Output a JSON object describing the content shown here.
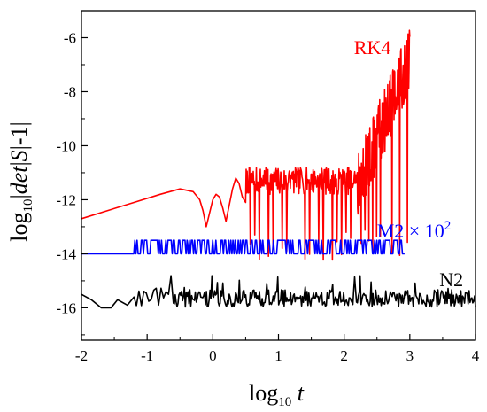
{
  "chart_data": {
    "type": "line",
    "xlabel": {
      "base": "log",
      "sub": "10",
      "var": "t"
    },
    "ylabel": {
      "base": "log",
      "sub": "10",
      "mid": "|",
      "italic": "det",
      "bar1": "|",
      "italic2": "S",
      "tail": "|-1|"
    },
    "xlim": [
      -2,
      4
    ],
    "ylim": [
      -17.2,
      -5
    ],
    "x_ticks": [
      "-2",
      "-1",
      "0",
      "1",
      "2",
      "3",
      "4"
    ],
    "y_ticks": [
      "-6",
      "-8",
      "-10",
      "-12",
      "-14",
      "-16"
    ],
    "grid": false,
    "series": [
      {
        "name": "RK4",
        "color": "#ff0000",
        "label": "RK4",
        "label_anchor": {
          "x": 2.15,
          "y": -6.6
        },
        "segments": [
          {
            "kind": "smooth",
            "x": [
              -2.0,
              -1.6,
              -1.2,
              -0.8,
              -0.5,
              -0.3,
              -0.2,
              -0.15,
              -0.1
            ],
            "y": [
              -12.7,
              -12.4,
              -12.1,
              -11.8,
              -11.6,
              -11.7,
              -12.0,
              -12.4,
              -13.0
            ]
          },
          {
            "kind": "smooth",
            "x": [
              -0.1,
              -0.05,
              0.0,
              0.05,
              0.1,
              0.15,
              0.2
            ],
            "y": [
              -13.0,
              -12.5,
              -12.0,
              -11.8,
              -11.9,
              -12.3,
              -12.8
            ]
          },
          {
            "kind": "smooth",
            "x": [
              0.2,
              0.25,
              0.3,
              0.35,
              0.4,
              0.45,
              0.5
            ],
            "y": [
              -12.8,
              -12.2,
              -11.6,
              -11.2,
              -11.4,
              -11.9,
              -12.1
            ]
          },
          {
            "kind": "noisy",
            "x_start": 0.5,
            "x_end": 2.2,
            "n": 220,
            "base": -11.3,
            "amp": 0.5,
            "spike_min": -14.3,
            "spike_every": 9,
            "seed": 7
          },
          {
            "kind": "noisy",
            "x_start": 2.2,
            "x_end": 3.0,
            "n": 150,
            "base_from": -11.5,
            "base_to": -6.8,
            "amp": 1.2,
            "spike_min": -14.3,
            "spike_every": 11,
            "seed": 13
          }
        ]
      },
      {
        "name": "M2 × 10^2",
        "color": "#0000ff",
        "label": "M2 × 10",
        "label_sup": "2",
        "label_anchor": {
          "x": 2.5,
          "y": -13.4
        },
        "segments": [
          {
            "kind": "flat",
            "x": [
              -2.0,
              -1.3
            ],
            "y": -14.0
          },
          {
            "kind": "square",
            "x_start": -1.3,
            "x_end": 2.92,
            "n": 260,
            "low": -14.0,
            "high": -13.5,
            "seed": 21
          }
        ]
      },
      {
        "name": "N2",
        "color": "#000000",
        "label": "N2",
        "label_anchor": {
          "x": 3.45,
          "y": -15.2
        },
        "segments": [
          {
            "kind": "smooth",
            "x": [
              -2.0,
              -1.85,
              -1.7,
              -1.55,
              -1.45,
              -1.3,
              -1.2
            ],
            "y": [
              -15.5,
              -15.7,
              -16.0,
              -16.0,
              -15.7,
              -15.9,
              -15.6
            ]
          },
          {
            "kind": "noisy",
            "x_start": -1.2,
            "x_end": -0.6,
            "n": 16,
            "base": -15.6,
            "amp": 0.35,
            "spike_min": -16.0,
            "spike_every": 5,
            "seed": 31
          },
          {
            "kind": "noisy",
            "x_start": -0.6,
            "x_end": 4.0,
            "n": 330,
            "base": -15.65,
            "amp": 0.32,
            "spike_min": -16.0,
            "spike_every": 6,
            "seed": 41
          }
        ]
      }
    ]
  }
}
